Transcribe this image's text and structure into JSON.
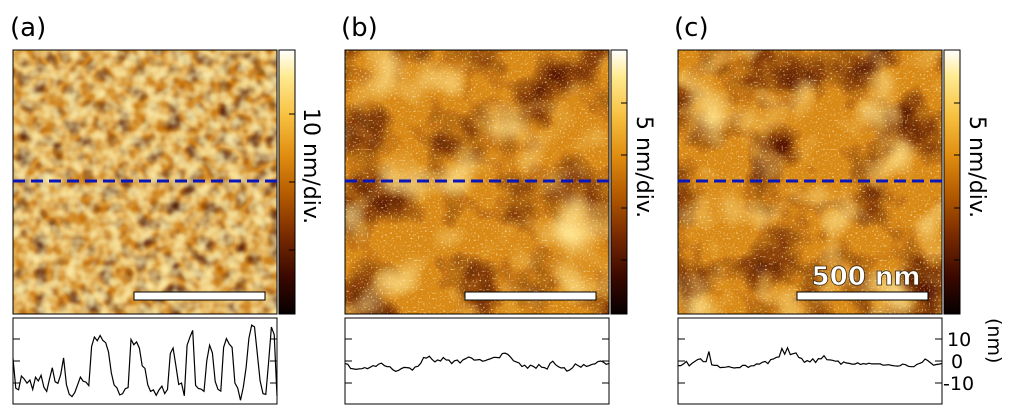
{
  "panels": [
    {
      "label": "(a)",
      "colorbar_label": "10 nm/div.",
      "scale_bar_text": "",
      "profile": [
        1.2,
        -12.4,
        -13.1,
        -6.8,
        -8.2,
        -10.1,
        -8.7,
        -12.9,
        -7.4,
        -9.1,
        -6.5,
        -11.9,
        -13.8,
        -8.2,
        -3.1,
        -9.4,
        -10.2,
        -6.2,
        1.4,
        -10.7,
        -15.1,
        -16.2,
        -14.3,
        -10.8,
        -7.3,
        -9.2,
        -9.6,
        -11.2,
        6.6,
        10.9,
        9.2,
        11.6,
        9.3,
        8.3,
        4.1,
        -5.3,
        -10.9,
        -12.2,
        -15.4,
        -14.9,
        -12.6,
        -12.1,
        9.8,
        7.4,
        8.7,
        5.8,
        -2.2,
        -3.4,
        -10.9,
        -13.8,
        -13.1,
        -15.6,
        -13.2,
        -11.4,
        -14.8,
        -12.9,
        3.4,
        5.9,
        -2.2,
        -10.7,
        -10.0,
        -15.8,
        7.2,
        10.8,
        13.9,
        -11.1,
        -12.5,
        -12.8,
        -13.8,
        0.2,
        7.2,
        3.7,
        -9.3,
        -12.9,
        -13.7,
        6.2,
        10.2,
        7.7,
        6.2,
        -10.0,
        -12.3,
        -17.8,
        -11.9,
        -3.0,
        10.3,
        16.3,
        15.5,
        3.3,
        -9.0,
        -14.8,
        -15.2,
        -0.6,
        15.4,
        12.0,
        -15.9
      ]
    },
    {
      "label": "(b)",
      "colorbar_label": "5 nm/div.",
      "scale_bar_text": "",
      "profile": [
        -1.2,
        -1.5,
        -3.4,
        -3.6,
        -3.8,
        -3.6,
        -3.5,
        -3.0,
        -3.5,
        -2.8,
        -2.1,
        -2.5,
        -1.4,
        -1.0,
        -2.1,
        -2.6,
        -2.6,
        -3.9,
        -4.7,
        -4.3,
        -3.5,
        -2.9,
        -3.0,
        -3.2,
        -4.2,
        -2.7,
        -2.4,
        -1.0,
        1.6,
        1.3,
        2.2,
        0.7,
        -0.4,
        0.5,
        0.0,
        1.6,
        0.5,
        0.4,
        -1.2,
        0.1,
        0.4,
        -0.9,
        0.5,
        1.1,
        1.8,
        1.4,
        0.4,
        0.5,
        0.7,
        -0.1,
        0.2,
        0.7,
        1.1,
        1.7,
        1.6,
        1.5,
        3.4,
        3.6,
        3.0,
        1.7,
        0.1,
        -0.4,
        -0.9,
        -2.5,
        -1.9,
        -3.3,
        -1.9,
        -2.4,
        -3.3,
        -1.6,
        -2.8,
        -3.0,
        -3.7,
        -1.1,
        -0.1,
        -1.7,
        -2.6,
        -3.2,
        -3.0,
        -4.6,
        -4.1,
        -3.1,
        -1.3,
        -2.1,
        -2.8,
        -1.6,
        -2.5,
        -2.1,
        -1.5,
        -1.3,
        -0.3,
        0.0,
        -0.5,
        -1.5,
        -1.1
      ]
    },
    {
      "label": "(c)",
      "colorbar_label": "5 nm/div.",
      "scale_bar_text": "500 nm",
      "profile": [
        -2.1,
        -2.1,
        -1.3,
        -0.2,
        -2.2,
        -1.1,
        -0.2,
        0.7,
        1.0,
        -0.3,
        -0.3,
        4.3,
        -1.7,
        -2.0,
        -2.0,
        -3.0,
        -2.9,
        -2.8,
        -2.5,
        -2.9,
        -3.2,
        -3.0,
        -3.0,
        -2.0,
        -2.0,
        -2.9,
        -2.2,
        -2.2,
        -1.3,
        -1.4,
        -0.6,
        -0.2,
        -1.2,
        0.6,
        0.9,
        1.7,
        1.8,
        5.7,
        3.1,
        6.0,
        2.9,
        3.3,
        3.7,
        1.6,
        1.2,
        -0.6,
        0.2,
        -0.4,
        1.0,
        -0.7,
        1.1,
        1.0,
        2.4,
        0.6,
        0.5,
        0.3,
        -0.1,
        0.0,
        -1.5,
        -0.4,
        -0.9,
        -1.1,
        -1.4,
        -1.4,
        -0.8,
        -1.6,
        -1.2,
        -1.4,
        -1.0,
        -1.3,
        -1.3,
        -1.3,
        -1.3,
        -1.9,
        -1.8,
        -1.7,
        -2.0,
        -2.2,
        -2.3,
        -2.2,
        -1.4,
        -1.7,
        -2.4,
        -2.6,
        -2.6,
        -1.6,
        -1.1,
        -0.6,
        0.9,
        0.1,
        -0.9,
        -1.9,
        -1.6,
        -1.4,
        -1.1
      ]
    }
  ],
  "profile_axis": {
    "unit_label": "(nm)",
    "ticks": [
      "10",
      "0",
      "-10"
    ]
  },
  "colors": {
    "dashed_line": "#0b16b8",
    "afm_colormap": [
      "#060000",
      "#3a0800",
      "#7a2b00",
      "#b35a00",
      "#e08d10",
      "#f7c040",
      "#ffea90",
      "#ffffff"
    ]
  }
}
